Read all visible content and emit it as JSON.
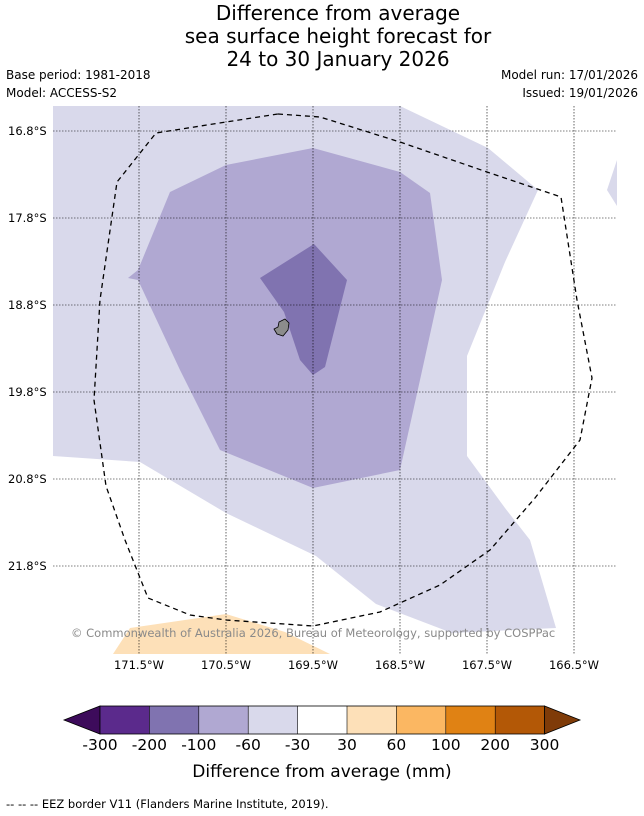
{
  "header": {
    "title_line1": "Difference from average",
    "title_line2": "sea surface height forecast for",
    "title_line3": "24 to 30 January 2026",
    "base_period": "Base period: 1981-2018",
    "model": "Model: ACCESS-S2",
    "model_run": "Model run: 17/01/2026",
    "issued": "Issued: 19/01/2026"
  },
  "map": {
    "lat_labels": [
      "16.8°S",
      "17.8°S",
      "18.8°S",
      "19.8°S",
      "20.8°S",
      "21.8°S"
    ],
    "lon_labels": [
      "171.5°W",
      "170.5°W",
      "169.5°W",
      "168.5°W",
      "167.5°W",
      "166.5°W"
    ],
    "copyright": "© Commonwealth of Australia 2026, Bureau of Meteorology, supported by COSPPac",
    "colors": {
      "band_-100_-60": "#b0a8d2",
      "band_-200_-100": "#8073b0",
      "band_-60_-30": "#d9d9eb",
      "band_30_60": "#fde0b8",
      "land": "#8c8c8c"
    }
  },
  "colorbar": {
    "tick_labels": [
      "-300",
      "-200",
      "-100",
      "-60",
      "-30",
      "30",
      "60",
      "100",
      "200",
      "300"
    ],
    "title": "Difference from average (mm)",
    "colors": [
      "#3d0b5b",
      "#5b2a8c",
      "#8073b0",
      "#b0a8d2",
      "#d9d9eb",
      "#ffffff",
      "#fde0b8",
      "#fbb762",
      "#e08214",
      "#b35806",
      "#7f3b08"
    ]
  },
  "footnote": "--  --  -- EEZ border V11 (Flanders Marine Institute, 2019)."
}
